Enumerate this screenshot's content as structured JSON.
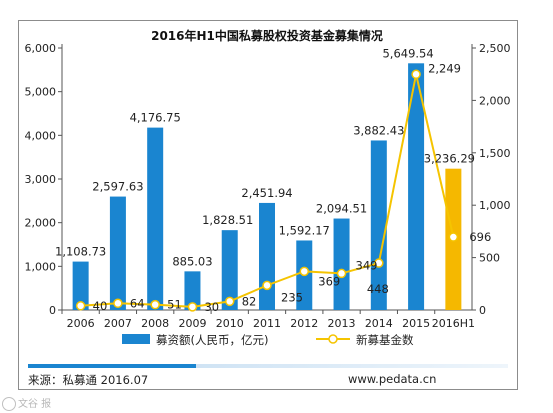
{
  "chart_data": {
    "type": "bar+line",
    "title": "2016年H1中国私募股权投资基金募集情况",
    "categories": [
      "2006",
      "2007",
      "2008",
      "2009",
      "2010",
      "2011",
      "2012",
      "2013",
      "2014",
      "2015",
      "2016H1"
    ],
    "series": [
      {
        "name": "募资额(人民币，亿元)",
        "type": "bar",
        "axis": "left",
        "color": "#1a85d0",
        "highlight_color": "#f5b800",
        "highlight_index": 10,
        "values": [
          1108.73,
          2597.63,
          4176.75,
          885.03,
          1828.51,
          2451.94,
          1592.17,
          2094.51,
          3882.43,
          5649.54,
          3236.29
        ],
        "labels": [
          "1,108.73",
          "2,597.63",
          "4,176.75",
          "885.03",
          "1,828.51",
          "2,451.94",
          "1,592.17",
          "2,094.51",
          "3,882.43",
          "5,649.54",
          "3,236.29"
        ]
      },
      {
        "name": "新募基金数",
        "type": "line",
        "axis": "right",
        "color": "#f5c400",
        "values": [
          40,
          64,
          51,
          30,
          82,
          235,
          369,
          349,
          448,
          2249,
          696
        ],
        "labels": [
          "40",
          "64",
          "51",
          "30",
          "82",
          "235",
          "369",
          "349",
          "448",
          "2,249",
          "696"
        ]
      }
    ],
    "y_left": {
      "min": 0,
      "max": 6000,
      "ticks": [
        "0",
        "1,000",
        "2,000",
        "3,000",
        "4,000",
        "5,000",
        "6,000"
      ]
    },
    "y_right": {
      "min": 0,
      "max": 2500,
      "ticks": [
        "0",
        "500",
        "1,000",
        "1,500",
        "2,000",
        "2,500"
      ]
    },
    "grid": false,
    "legend": "bottom"
  },
  "footer": {
    "source": "来源：私募通 2016.07",
    "website": "www.pedata.cn"
  },
  "watermark": "文谷 报"
}
